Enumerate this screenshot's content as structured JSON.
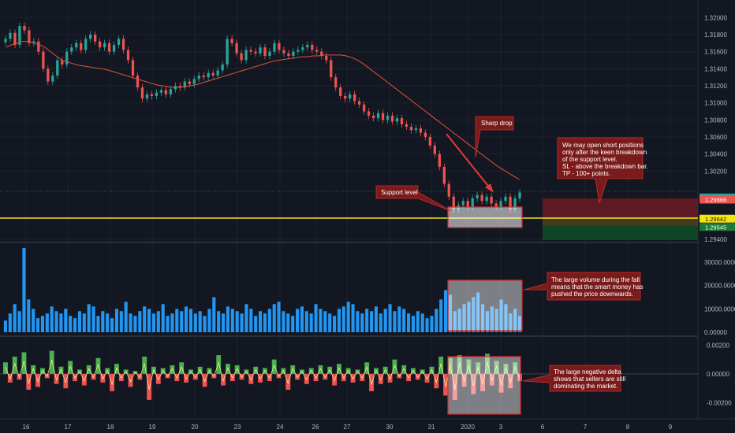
{
  "chart_data": [
    {
      "type": "candlestick",
      "panel": "price",
      "title": "",
      "ylim": [
        1.294,
        1.3215
      ],
      "y_ticks": [
        "1.32000",
        "1.31800",
        "1.31600",
        "1.31400",
        "1.31200",
        "1.31000",
        "1.30800",
        "1.30600",
        "1.30400",
        "1.30200",
        "1.29400"
      ],
      "x_ticks": [
        "16",
        "17",
        "18",
        "19",
        "20",
        "23",
        "24",
        "26",
        "27",
        "30",
        "31",
        "2020",
        "3",
        "6",
        "7",
        "8",
        "9"
      ],
      "price_badges": [
        {
          "label": "29:56",
          "value": 1.2989,
          "color": "#26a69a"
        },
        {
          "label": "1.29866",
          "value": 1.29866,
          "color": "#ef5350"
        },
        {
          "label": "1.29642",
          "value": 1.29642,
          "color": "#f5e50d"
        },
        {
          "label": "1.29545",
          "value": 1.29545,
          "color": "#1e7a3a"
        }
      ],
      "support_level": 1.2964,
      "moving_average_color": "#e0533b",
      "candle_closes": [
        1.3175,
        1.3182,
        1.3168,
        1.319,
        1.3185,
        1.317,
        1.3172,
        1.316,
        1.314,
        1.3125,
        1.3132,
        1.315,
        1.3145,
        1.316,
        1.3165,
        1.317,
        1.3162,
        1.3175,
        1.318,
        1.3172,
        1.3165,
        1.317,
        1.316,
        1.3168,
        1.3175,
        1.3162,
        1.315,
        1.3132,
        1.3118,
        1.3105,
        1.311,
        1.3108,
        1.3112,
        1.3115,
        1.311,
        1.3116,
        1.312,
        1.3118,
        1.3125,
        1.3122,
        1.3128,
        1.3132,
        1.313,
        1.3135,
        1.3132,
        1.3138,
        1.3145,
        1.3175,
        1.317,
        1.3158,
        1.315,
        1.3162,
        1.316,
        1.3158,
        1.3165,
        1.3155,
        1.316,
        1.317,
        1.3162,
        1.3158,
        1.3155,
        1.316,
        1.3162,
        1.3165,
        1.3168,
        1.3162,
        1.316,
        1.3155,
        1.315,
        1.313,
        1.3118,
        1.3108,
        1.3105,
        1.311,
        1.3102,
        1.3098,
        1.309,
        1.3085,
        1.3082,
        1.3088,
        1.308,
        1.3085,
        1.3078,
        1.3082,
        1.3075,
        1.3072,
        1.3068,
        1.307,
        1.3065,
        1.306,
        1.305,
        1.304,
        1.3025,
        1.3005,
        1.299,
        1.2975,
        1.298,
        1.2985,
        1.2978,
        1.2988,
        1.2992,
        1.2985,
        1.299,
        1.2982,
        1.2978,
        1.2985,
        1.299,
        1.2975,
        1.2988,
        1.2995
      ],
      "moving_average": [
        1.3165,
        1.3168,
        1.317,
        1.3172,
        1.3172,
        1.317,
        1.3168,
        1.3165,
        1.316,
        1.3155,
        1.315,
        1.3148,
        1.3146,
        1.3144,
        1.3143,
        1.3142,
        1.3141,
        1.314,
        1.3139,
        1.3137,
        1.3135,
        1.3133,
        1.3131,
        1.3129,
        1.3127,
        1.3125,
        1.3123,
        1.3121,
        1.312,
        1.3119,
        1.3118,
        1.3118,
        1.3119,
        1.312,
        1.3121,
        1.3123,
        1.3125,
        1.3127,
        1.3129,
        1.3131,
        1.3133,
        1.3135,
        1.3137,
        1.3139,
        1.3141,
        1.3143,
        1.3145,
        1.3147,
        1.3149,
        1.315,
        1.3151,
        1.3152,
        1.3153,
        1.3154,
        1.3154,
        1.3155,
        1.3155,
        1.3156,
        1.3156,
        1.3156,
        1.3156,
        1.3155,
        1.3153,
        1.315,
        1.3146,
        1.3141,
        1.3136,
        1.3131,
        1.3126,
        1.3121,
        1.3116,
        1.3111,
        1.3106,
        1.3101,
        1.3096,
        1.3091,
        1.3086,
        1.3081,
        1.3076,
        1.3071,
        1.3066,
        1.3061,
        1.3056,
        1.3051,
        1.3046,
        1.3041,
        1.3036,
        1.3031,
        1.3026,
        1.3022,
        1.3018,
        1.3014,
        1.301
      ]
    },
    {
      "type": "bar",
      "panel": "volume",
      "ylim": [
        0,
        37000
      ],
      "y_ticks": [
        "30000.00000",
        "20000.00000",
        "10000.00000",
        "0.00000"
      ],
      "values": [
        5000,
        8000,
        12000,
        9000,
        36000,
        14000,
        10000,
        6000,
        7000,
        8000,
        11000,
        9000,
        8000,
        10000,
        7000,
        6000,
        9000,
        8000,
        12000,
        11000,
        7000,
        9000,
        8000,
        6000,
        10000,
        9000,
        13000,
        8000,
        7000,
        9000,
        11000,
        10000,
        8000,
        9000,
        12000,
        7000,
        8000,
        10000,
        9000,
        11000,
        10000,
        8000,
        9000,
        7000,
        10000,
        15000,
        9000,
        8000,
        11000,
        10000,
        9000,
        8000,
        12000,
        10000,
        7000,
        9000,
        8000,
        10000,
        12000,
        13000,
        9000,
        8000,
        7000,
        10000,
        11000,
        9000,
        8000,
        12000,
        10000,
        9000,
        8000,
        7000,
        10000,
        11000,
        13000,
        12000,
        9000,
        8000,
        10000,
        9000,
        11000,
        8000,
        10000,
        12000,
        9000,
        11000,
        10000,
        8000,
        7000,
        9000,
        8000,
        6000,
        7000,
        10000,
        14000,
        18000,
        16000,
        9000,
        10000,
        12000,
        13000,
        15000,
        17000,
        12000,
        9000,
        11000,
        10000,
        14000,
        12000,
        8000,
        10000,
        7000
      ]
    },
    {
      "type": "area",
      "panel": "delta",
      "ylim": [
        -0.0029,
        0.0024
      ],
      "y_ticks": [
        "0.00200",
        "0.00000",
        "-0.00200"
      ],
      "values": [
        0.0008,
        -0.0006,
        0.0012,
        -0.0004,
        0.0015,
        -0.0011,
        0.0006,
        -0.0009,
        0.0004,
        -0.0003,
        0.0016,
        -0.0007,
        0.0005,
        -0.001,
        0.0009,
        -0.0005,
        0.0003,
        -0.0008,
        0.0006,
        -0.0004,
        0.0011,
        -0.0006,
        0.0004,
        -0.0012,
        0.0007,
        -0.0005,
        0.0003,
        -0.0009,
        0.0002,
        -0.0004,
        0.0012,
        -0.0018,
        0.0005,
        -0.0007,
        0.0004,
        -0.0003,
        0.0006,
        -0.0005,
        0.0008,
        -0.0006,
        0.0003,
        -0.0004,
        0.0005,
        -0.0009,
        0.0004,
        -0.0003,
        0.0013,
        -0.0008,
        0.0007,
        -0.0005,
        0.0006,
        -0.0004,
        0.0003,
        -0.0007,
        0.0005,
        -0.0006,
        0.0004,
        -0.0005,
        0.001,
        -0.0003,
        0.0004,
        -0.0011,
        0.0006,
        -0.0004,
        0.0003,
        -0.0007,
        0.0004,
        -0.0005,
        0.0006,
        -0.0004,
        0.0005,
        -0.0008,
        0.0007,
        -0.0005,
        0.0004,
        -0.0006,
        0.0003,
        -0.0005,
        0.0008,
        -0.0012,
        0.0004,
        -0.0007,
        0.0005,
        -0.0006,
        0.001,
        -0.0003,
        0.0006,
        -0.0005,
        0.0004,
        -0.0004,
        0.0003,
        -0.0006,
        0.0005,
        -0.001,
        0.0012,
        -0.0015,
        0.0011,
        -0.0018,
        0.0013,
        -0.0009,
        0.001,
        -0.0014,
        0.0008,
        -0.0012,
        0.0014,
        -0.0008,
        0.0009,
        -0.0013,
        0.0007,
        -0.001,
        0.0008,
        -0.0005
      ]
    }
  ],
  "annotations": {
    "support_level": "Support level",
    "sharp_drop": "Sharp drop",
    "short_positions": [
      "We may open short positions",
      "only after the keen breakdown",
      "of the support level.",
      "SL - above the breakdown bar.",
      "TP - 100+ points."
    ],
    "large_volume": [
      "The large volume during the fall",
      "means that the smart money has",
      "pushed the price downwards."
    ],
    "negative_delta": [
      "The large negative delta",
      "shows that sellers are still",
      "dominating the market."
    ]
  },
  "colors": {
    "background": "#131722",
    "candle_up": "#26a69a",
    "candle_down": "#ef5350",
    "volume_bar": "#2196f3",
    "delta_up": "#4caf50",
    "delta_down": "#ef5350",
    "highlight_box": "#ffffff",
    "highlight_border": "#d32f2f",
    "annotation_fill": "#7a1b1b",
    "support_line": "#f5e50d"
  }
}
